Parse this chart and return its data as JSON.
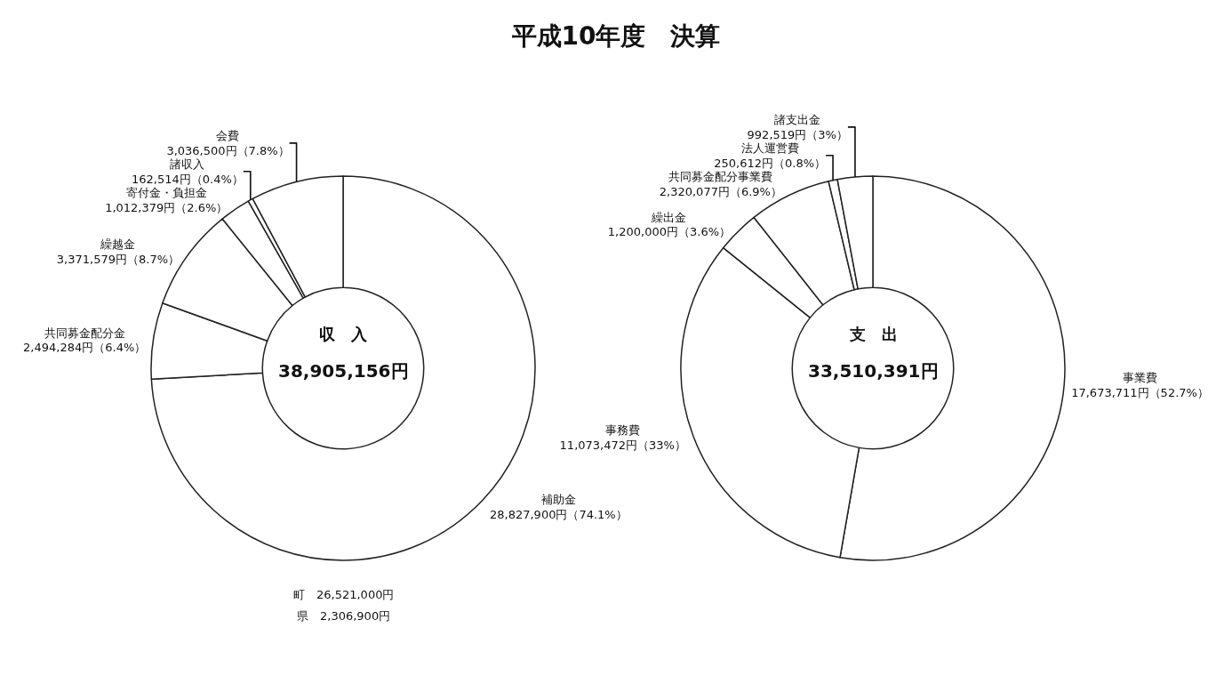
{
  "chart_data": [
    {
      "type": "donut",
      "title": "平成10年度　決算",
      "subtitle": "収　入",
      "categories": [
        "補助金",
        "共同募金配分金",
        "繰越金",
        "寄付金・負担金",
        "諸収入",
        "会費"
      ],
      "values": [
        28827900,
        2494284,
        3371579,
        1012379,
        162514,
        3036500
      ],
      "value_labels": [
        "28,827,900円（74.1%）",
        "2,494,284円（6.4%）",
        "3,371,579円（8.7%）",
        "1,012,379円（2.6%）",
        "162,514円（0.4%）",
        "3,036,500円（7.8%）"
      ],
      "colors": [
        "#ffffff",
        "#ffffff",
        "#ffffff",
        "#ffffff",
        "#ffffff",
        "#ffffff"
      ],
      "annotations": [
        "38,905,156円",
        "町　26,521,000円",
        "県　2,306,900円"
      ],
      "legend": false
    },
    {
      "type": "donut",
      "title": "支　出",
      "categories": [
        "事業費",
        "事務費",
        "繰出金",
        "共同募金配分事業費",
        "法人運営費",
        "諸支出金"
      ],
      "values": [
        17673711,
        11073472,
        1200000,
        2320077,
        250612,
        992519
      ],
      "value_labels": [
        "17,673,711円（52.7%）",
        "11,073,472円（33%）",
        "1,200,000円（3.6%）",
        "2,320,077円（6.9%）",
        "250,612円（0.8%）",
        "992,519円（3%）"
      ],
      "colors": [
        "#ffffff",
        "#ffffff",
        "#ffffff",
        "#ffffff",
        "#ffffff",
        "#ffffff"
      ],
      "annotations": [
        "33,510,391円"
      ],
      "legend": false
    }
  ]
}
